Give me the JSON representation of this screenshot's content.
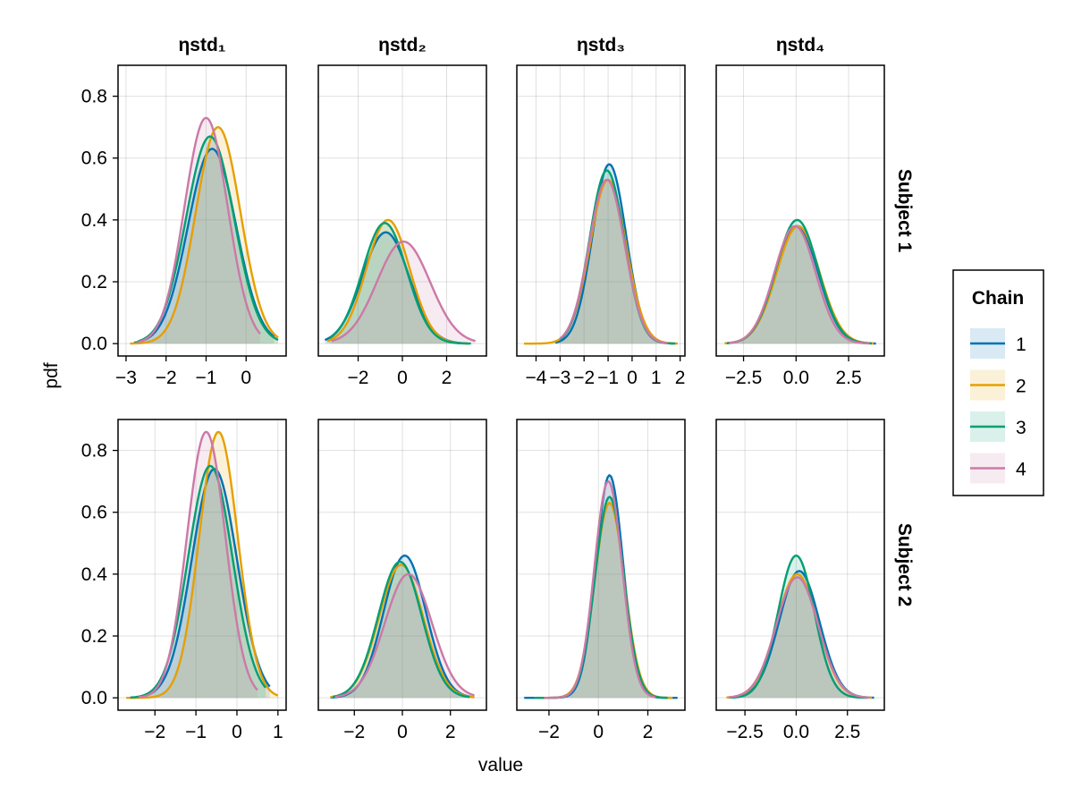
{
  "chart_data": {
    "type": "area",
    "xlabel": "value",
    "ylabel": "pdf",
    "legend": {
      "title": "Chain",
      "placement": "right",
      "entries": [
        {
          "label": "1",
          "color": "#0072B2"
        },
        {
          "label": "2",
          "color": "#E69F00"
        },
        {
          "label": "3",
          "color": "#009E73"
        },
        {
          "label": "4",
          "color": "#CC79A7"
        }
      ]
    },
    "columns": [
      "ηstd₁",
      "ηstd₂",
      "ηstd₃",
      "ηstd₄"
    ],
    "rows": [
      "Subject 1",
      "Subject 2"
    ],
    "grid": true,
    "ylim": [
      -0.04,
      0.9
    ],
    "yticks": [
      0.0,
      0.2,
      0.4,
      0.6,
      0.8
    ],
    "ytick_labels": [
      "0.0",
      "0.2",
      "0.4",
      "0.6",
      "0.8"
    ],
    "panels": [
      {
        "row": "Subject 1",
        "column": "ηstd₁",
        "xlim": [
          -3.2,
          1.0
        ],
        "xticks": [
          -3,
          -2,
          -1,
          0
        ],
        "xtick_labels": [
          "−3",
          "−2",
          "−1",
          "0"
        ],
        "series": [
          {
            "chain": "1",
            "mu": -0.85,
            "sigma": 0.6,
            "xmin": -2.8,
            "xmax": 0.7,
            "peak": 0.63
          },
          {
            "chain": "2",
            "mu": -0.7,
            "sigma": 0.56,
            "xmin": -2.9,
            "xmax": 0.8,
            "peak": 0.7
          },
          {
            "chain": "3",
            "mu": -0.9,
            "sigma": 0.6,
            "xmin": -2.7,
            "xmax": 0.8,
            "peak": 0.67
          },
          {
            "chain": "4",
            "mu": -1.0,
            "sigma": 0.54,
            "xmin": -2.7,
            "xmax": 0.35,
            "peak": 0.73
          }
        ]
      },
      {
        "row": "Subject 1",
        "column": "ηstd₂",
        "xlim": [
          -3.8,
          3.8
        ],
        "xticks": [
          -2,
          0,
          2
        ],
        "xtick_labels": [
          "−2",
          "0",
          "2"
        ],
        "series": [
          {
            "chain": "1",
            "mu": -0.75,
            "sigma": 1.05,
            "xmin": -3.5,
            "xmax": 2.9,
            "peak": 0.36
          },
          {
            "chain": "2",
            "mu": -0.65,
            "sigma": 0.98,
            "xmin": -3.4,
            "xmax": 3.0,
            "peak": 0.4
          },
          {
            "chain": "3",
            "mu": -0.8,
            "sigma": 1.0,
            "xmin": -3.3,
            "xmax": 3.1,
            "peak": 0.39
          },
          {
            "chain": "4",
            "mu": 0.05,
            "sigma": 1.2,
            "xmin": -3.2,
            "xmax": 3.3,
            "peak": 0.33
          }
        ]
      },
      {
        "row": "Subject 1",
        "column": "ηstd₃",
        "xlim": [
          -4.8,
          2.2
        ],
        "xticks": [
          -4,
          -3,
          -2,
          -1,
          0,
          1,
          2
        ],
        "xtick_labels": [
          "−4",
          "−3",
          "−2",
          "−1",
          "0",
          "1",
          "2"
        ],
        "series": [
          {
            "chain": "1",
            "mu": -0.95,
            "sigma": 0.7,
            "xmin": -3.2,
            "xmax": 1.7,
            "peak": 0.58
          },
          {
            "chain": "2",
            "mu": -1.0,
            "sigma": 0.75,
            "xmin": -4.5,
            "xmax": 1.9,
            "peak": 0.53
          },
          {
            "chain": "3",
            "mu": -1.05,
            "sigma": 0.72,
            "xmin": -3.0,
            "xmax": 1.8,
            "peak": 0.56
          },
          {
            "chain": "4",
            "mu": -1.05,
            "sigma": 0.74,
            "xmin": -3.0,
            "xmax": 1.5,
            "peak": 0.53
          }
        ]
      },
      {
        "row": "Subject 1",
        "column": "ηstd₄",
        "xlim": [
          -3.8,
          4.2
        ],
        "xticks": [
          -2.5,
          0.0,
          2.5
        ],
        "xtick_labels": [
          "−2.5",
          "0.0",
          "2.5"
        ],
        "series": [
          {
            "chain": "1",
            "mu": 0.05,
            "sigma": 1.0,
            "xmin": -3.3,
            "xmax": 3.8,
            "peak": 0.38
          },
          {
            "chain": "2",
            "mu": 0.1,
            "sigma": 1.02,
            "xmin": -3.4,
            "xmax": 3.7,
            "peak": 0.38
          },
          {
            "chain": "3",
            "mu": 0.05,
            "sigma": 1.0,
            "xmin": -3.3,
            "xmax": 3.6,
            "peak": 0.4
          },
          {
            "chain": "4",
            "mu": -0.05,
            "sigma": 0.98,
            "xmin": -3.2,
            "xmax": 3.5,
            "peak": 0.38
          }
        ]
      },
      {
        "row": "Subject 2",
        "column": "ηstd₁",
        "xlim": [
          -2.9,
          1.2
        ],
        "xticks": [
          -2,
          -1,
          0,
          1
        ],
        "xtick_labels": [
          "−2",
          "−1",
          "0",
          "1"
        ],
        "series": [
          {
            "chain": "1",
            "mu": -0.55,
            "sigma": 0.55,
            "xmin": -2.3,
            "xmax": 0.8,
            "peak": 0.74
          },
          {
            "chain": "2",
            "mu": -0.45,
            "sigma": 0.47,
            "xmin": -2.7,
            "xmax": 1.0,
            "peak": 0.86
          },
          {
            "chain": "3",
            "mu": -0.65,
            "sigma": 0.54,
            "xmin": -2.6,
            "xmax": 0.7,
            "peak": 0.75
          },
          {
            "chain": "4",
            "mu": -0.75,
            "sigma": 0.47,
            "xmin": -2.4,
            "xmax": 0.5,
            "peak": 0.86
          }
        ]
      },
      {
        "row": "Subject 2",
        "column": "ηstd₂",
        "xlim": [
          -3.5,
          3.5
        ],
        "xticks": [
          -2,
          0,
          2
        ],
        "xtick_labels": [
          "−2",
          "0",
          "2"
        ],
        "series": [
          {
            "chain": "1",
            "mu": 0.1,
            "sigma": 0.88,
            "xmin": -3.0,
            "xmax": 2.9,
            "peak": 0.46
          },
          {
            "chain": "2",
            "mu": -0.05,
            "sigma": 0.92,
            "xmin": -3.0,
            "xmax": 3.0,
            "peak": 0.43
          },
          {
            "chain": "3",
            "mu": -0.1,
            "sigma": 0.9,
            "xmin": -2.9,
            "xmax": 2.8,
            "peak": 0.44
          },
          {
            "chain": "4",
            "mu": 0.25,
            "sigma": 0.98,
            "xmin": -2.8,
            "xmax": 3.0,
            "peak": 0.4
          }
        ]
      },
      {
        "row": "Subject 2",
        "column": "ηstd₃",
        "xlim": [
          -3.3,
          3.5
        ],
        "xticks": [
          -2,
          0,
          2
        ],
        "xtick_labels": [
          "−2",
          "0",
          "2"
        ],
        "series": [
          {
            "chain": "1",
            "mu": 0.45,
            "sigma": 0.55,
            "xmin": -3.0,
            "xmax": 3.2,
            "peak": 0.72
          },
          {
            "chain": "2",
            "mu": 0.45,
            "sigma": 0.6,
            "xmin": -2.4,
            "xmax": 3.0,
            "peak": 0.63
          },
          {
            "chain": "3",
            "mu": 0.45,
            "sigma": 0.58,
            "xmin": -2.6,
            "xmax": 2.8,
            "peak": 0.65
          },
          {
            "chain": "4",
            "mu": 0.4,
            "sigma": 0.56,
            "xmin": -2.2,
            "xmax": 2.3,
            "peak": 0.7
          }
        ]
      },
      {
        "row": "Subject 2",
        "column": "ηstd₄",
        "xlim": [
          -3.9,
          4.3
        ],
        "xticks": [
          -2.5,
          0.0,
          2.5
        ],
        "xtick_labels": [
          "−2.5",
          "0.0",
          "2.5"
        ],
        "series": [
          {
            "chain": "1",
            "mu": 0.15,
            "sigma": 0.98,
            "xmin": -3.3,
            "xmax": 3.8,
            "peak": 0.41
          },
          {
            "chain": "2",
            "mu": 0.05,
            "sigma": 1.0,
            "xmin": -3.4,
            "xmax": 3.7,
            "peak": 0.4
          },
          {
            "chain": "3",
            "mu": 0.0,
            "sigma": 0.88,
            "xmin": -3.2,
            "xmax": 3.5,
            "peak": 0.46
          },
          {
            "chain": "4",
            "mu": 0.05,
            "sigma": 1.02,
            "xmin": -3.3,
            "xmax": 3.6,
            "peak": 0.39
          }
        ]
      }
    ]
  }
}
